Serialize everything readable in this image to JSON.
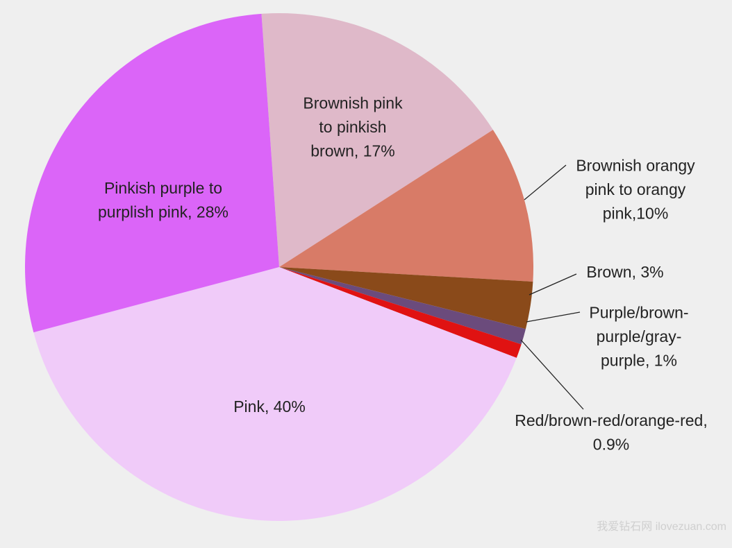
{
  "chart_data": {
    "type": "pie",
    "categories": [
      "Brownish pink\nto pinkish\nbrown, 17%",
      "Brownish orangy\npink to orangy\npink,10%",
      "Brown, 3%",
      "Purple/brown-\npurple/gray-\npurple, 1%",
      "Red/brown-red/orange-red,\n0.9%",
      "Pink, 40%",
      "Pinkish purple to\npurplish pink, 28%"
    ],
    "values": [
      17,
      10,
      3,
      1,
      0.9,
      40,
      28
    ],
    "colors": [
      "#dfb9c9",
      "#d87b67",
      "#8a4a1a",
      "#6b4b7c",
      "#e01212",
      "#f0cbf9",
      "#db65f8"
    ],
    "startangle": -4
  },
  "watermark": "我爱钻石网 ilovezuan.com"
}
